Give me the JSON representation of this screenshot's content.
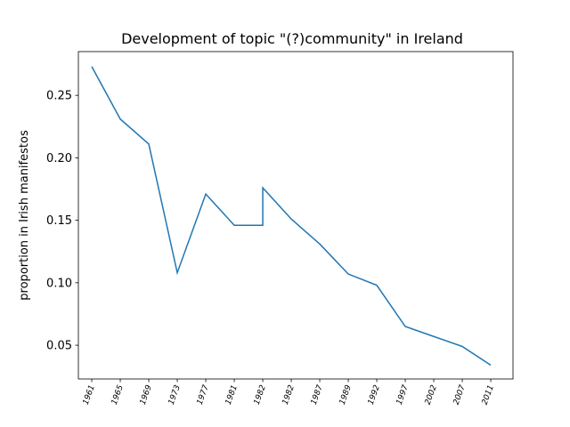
{
  "chart_data": {
    "type": "line",
    "title": "Development of topic \"(?)community\" in Ireland",
    "ylabel": "proportion in Irish manifestos",
    "x": [
      0,
      1,
      2,
      3,
      4,
      5,
      6,
      6,
      7,
      8,
      9,
      10,
      11,
      12,
      13,
      14
    ],
    "series": [
      {
        "name": null,
        "color": "#1f77b4",
        "values": [
          0.273,
          0.231,
          0.211,
          0.108,
          0.171,
          0.146,
          0.146,
          0.176,
          0.151,
          0.131,
          0.107,
          0.098,
          0.065,
          0.057,
          0.049,
          0.034
        ]
      }
    ],
    "xlim": [
      -0.47,
      14.78
    ],
    "xticks": [
      {
        "value": 0,
        "label": "1961"
      },
      {
        "value": 1,
        "label": "1965"
      },
      {
        "value": 2,
        "label": "1969"
      },
      {
        "value": 3,
        "label": "1973"
      },
      {
        "value": 4,
        "label": "1977"
      },
      {
        "value": 5,
        "label": "1981"
      },
      {
        "value": 6,
        "label": "1982"
      },
      {
        "value": 7,
        "label": "1982"
      },
      {
        "value": 8,
        "label": "1987"
      },
      {
        "value": 9,
        "label": "1989"
      },
      {
        "value": 10,
        "label": "1992"
      },
      {
        "value": 11,
        "label": "1997"
      },
      {
        "value": 12,
        "label": "2002"
      },
      {
        "value": 13,
        "label": "2007"
      },
      {
        "value": 14,
        "label": "2011"
      }
    ],
    "ylim": [
      0.023,
      0.285
    ],
    "yticks": [
      {
        "value": 0.05,
        "label": "0.05"
      },
      {
        "value": 0.1,
        "label": "0.10"
      },
      {
        "value": 0.15,
        "label": "0.15"
      },
      {
        "value": 0.2,
        "label": "0.20"
      },
      {
        "value": 0.25,
        "label": "0.25"
      }
    ],
    "grid": false
  }
}
